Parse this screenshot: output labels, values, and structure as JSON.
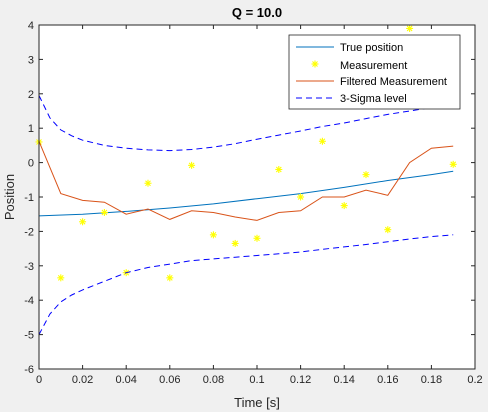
{
  "chart_data": {
    "type": "line",
    "title": "Q = 10.0",
    "xlabel": "Time [s]",
    "ylabel": "Position",
    "xlim": [
      0,
      0.2
    ],
    "ylim": [
      -6,
      4
    ],
    "xticks": [
      "0",
      "0.02",
      "0.04",
      "0.06",
      "0.08",
      "0.1",
      "0.12",
      "0.14",
      "0.16",
      "0.18",
      "0.2"
    ],
    "yticks": [
      "-6",
      "-5",
      "-4",
      "-3",
      "-2",
      "-1",
      "0",
      "1",
      "2",
      "3",
      "4"
    ],
    "xtick_values": [
      0,
      0.02,
      0.04,
      0.06,
      0.08,
      0.1,
      0.12,
      0.14,
      0.16,
      0.18,
      0.2
    ],
    "ytick_values": [
      -6,
      -5,
      -4,
      -3,
      -2,
      -1,
      0,
      1,
      2,
      3,
      4
    ],
    "grid": false,
    "legend_position": "top-right",
    "series": [
      {
        "name": "True position",
        "kind": "line",
        "color": "#0072bd",
        "x": [
          0,
          0.02,
          0.04,
          0.06,
          0.08,
          0.1,
          0.12,
          0.14,
          0.16,
          0.18,
          0.19
        ],
        "y": [
          -1.55,
          -1.5,
          -1.42,
          -1.32,
          -1.2,
          -1.05,
          -0.9,
          -0.72,
          -0.52,
          -0.35,
          -0.25
        ]
      },
      {
        "name": "Measurement",
        "kind": "markers",
        "color": "#ffff00",
        "x": [
          0,
          0.01,
          0.02,
          0.03,
          0.04,
          0.05,
          0.06,
          0.07,
          0.08,
          0.09,
          0.1,
          0.11,
          0.12,
          0.13,
          0.14,
          0.15,
          0.16,
          0.17,
          0.19
        ],
        "y": [
          0.6,
          -3.35,
          -1.72,
          -1.45,
          -3.2,
          -0.6,
          -3.35,
          -0.08,
          -2.1,
          -2.35,
          -2.2,
          -0.2,
          -1.0,
          0.62,
          -1.25,
          -0.35,
          -1.95,
          3.9,
          -0.05
        ]
      },
      {
        "name": "Filtered Measurement",
        "kind": "line",
        "color": "#d95319",
        "x": [
          0,
          0.01,
          0.02,
          0.03,
          0.04,
          0.05,
          0.06,
          0.07,
          0.08,
          0.09,
          0.1,
          0.11,
          0.12,
          0.13,
          0.14,
          0.15,
          0.16,
          0.17,
          0.18,
          0.19
        ],
        "y": [
          0.62,
          -0.9,
          -1.1,
          -1.15,
          -1.5,
          -1.35,
          -1.65,
          -1.4,
          -1.45,
          -1.58,
          -1.68,
          -1.45,
          -1.4,
          -1.0,
          -1.0,
          -0.8,
          -0.95,
          0.0,
          0.42,
          0.48
        ]
      },
      {
        "name": "3-Sigma level",
        "kind": "dashed",
        "color": "#0000ff",
        "x": [
          0,
          0.005,
          0.01,
          0.015,
          0.02,
          0.03,
          0.04,
          0.05,
          0.06,
          0.07,
          0.08,
          0.09,
          0.1,
          0.11,
          0.12,
          0.13,
          0.14,
          0.15,
          0.16,
          0.17,
          0.18,
          0.19
        ],
        "y": [
          1.95,
          1.3,
          0.95,
          0.78,
          0.65,
          0.5,
          0.42,
          0.37,
          0.35,
          0.38,
          0.45,
          0.55,
          0.68,
          0.8,
          0.92,
          1.05,
          1.15,
          1.28,
          1.4,
          1.5,
          1.6,
          1.7
        ]
      },
      {
        "name": "",
        "kind": "dashed",
        "color": "#0000ff",
        "x": [
          0,
          0.005,
          0.01,
          0.015,
          0.02,
          0.03,
          0.04,
          0.05,
          0.06,
          0.07,
          0.08,
          0.09,
          0.1,
          0.11,
          0.12,
          0.13,
          0.14,
          0.15,
          0.16,
          0.17,
          0.18,
          0.19
        ],
        "y": [
          -5.0,
          -4.4,
          -4.05,
          -3.85,
          -3.7,
          -3.45,
          -3.2,
          -3.05,
          -2.95,
          -2.85,
          -2.8,
          -2.75,
          -2.7,
          -2.65,
          -2.6,
          -2.52,
          -2.45,
          -2.38,
          -2.3,
          -2.22,
          -2.15,
          -2.1
        ]
      }
    ]
  }
}
